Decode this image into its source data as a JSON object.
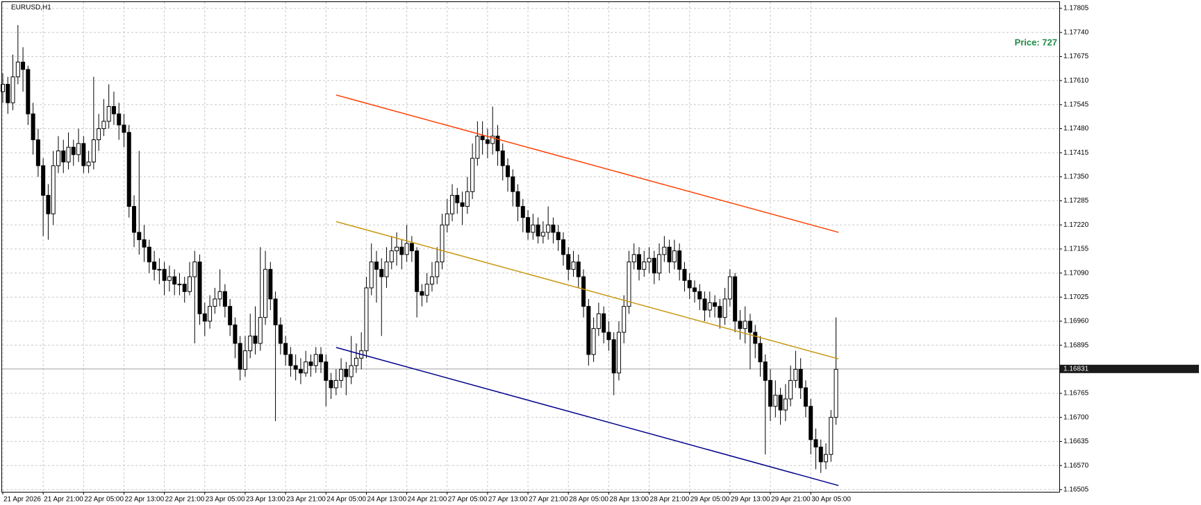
{
  "chart_data": {
    "type": "candlestick",
    "title": "EURUSD,H1",
    "annotation": "Price: 727",
    "bull_color": "#ffffff",
    "bear_color": "#000000",
    "grid": true,
    "ylim": [
      1.16499,
      1.17822
    ],
    "yticks": [
      1.17805,
      {
        "value": 1.1774,
        "label": "1.17740"
      },
      1.17675,
      {
        "value": 1.1761,
        "label": "1.17610"
      },
      1.17545,
      {
        "value": 1.1748,
        "label": "1.17480"
      },
      1.17415,
      {
        "value": 1.1735,
        "label": "1.17350"
      },
      1.17285,
      {
        "value": 1.1722,
        "label": "1.17220"
      },
      1.17155,
      {
        "value": 1.1709,
        "label": "1.17090"
      },
      1.17025,
      {
        "value": 1.1696,
        "label": "1.16960"
      },
      1.16895,
      1.16765,
      {
        "value": 1.167,
        "label": "1.16700"
      },
      1.16635,
      {
        "value": 1.1657,
        "label": "1.16570"
      },
      1.16505
    ],
    "xticks": [
      {
        "value": 0,
        "label": "21 Apr 2026"
      },
      {
        "value": 8,
        "label": "21 Apr 21:00"
      },
      {
        "value": 16,
        "label": "22 Apr 05:00"
      },
      {
        "value": 24,
        "label": "22 Apr 13:00"
      },
      {
        "value": 32,
        "label": "22 Apr 21:00"
      },
      {
        "value": 40,
        "label": "23 Apr 05:00"
      },
      {
        "value": 48,
        "label": "23 Apr 13:00"
      },
      {
        "value": 56,
        "label": "23 Apr 21:00"
      },
      {
        "value": 64,
        "label": "24 Apr 05:00"
      },
      {
        "value": 72,
        "label": "24 Apr 13:00"
      },
      {
        "value": 80,
        "label": "24 Apr 21:00"
      },
      {
        "value": 88,
        "label": "27 Apr 05:00"
      },
      {
        "value": 96,
        "label": "27 Apr 13:00"
      },
      {
        "value": 104,
        "label": "27 Apr 21:00"
      },
      {
        "value": 112,
        "label": "28 Apr 05:00"
      },
      {
        "value": 120,
        "label": "28 Apr 13:00"
      },
      {
        "value": 128,
        "label": "28 Apr 21:00"
      },
      {
        "value": 136,
        "label": "29 Apr 05:00"
      },
      {
        "value": 144,
        "label": "29 Apr 13:00"
      },
      {
        "value": 152,
        "label": "29 Apr 21:00"
      },
      {
        "value": 160,
        "label": "30 Apr 05:00"
      }
    ],
    "last_price": 1.16831,
    "lines": [
      {
        "color": "#ff4000",
        "x": [
          66,
          165.5
        ],
        "y": [
          1.17571,
          1.172
        ]
      },
      {
        "color": "#c8960c",
        "x": [
          66,
          165.5
        ],
        "y": [
          1.17229,
          1.16858
        ]
      },
      {
        "color": "#00008b",
        "x": [
          66,
          165.5
        ],
        "y": [
          1.16889,
          1.16516
        ]
      }
    ],
    "ohlc": [
      [
        1.1758,
        1.1763,
        1.1755,
        1.176
      ],
      [
        1.176,
        1.1762,
        1.1752,
        1.1755
      ],
      [
        1.1755,
        1.1768,
        1.1753,
        1.1762
      ],
      [
        1.1762,
        1.1776,
        1.176,
        1.1766
      ],
      [
        1.1766,
        1.177,
        1.1758,
        1.1764
      ],
      [
        1.1764,
        1.1765,
        1.1749,
        1.1752
      ],
      [
        1.1752,
        1.1755,
        1.1741,
        1.1745
      ],
      [
        1.1745,
        1.1748,
        1.1735,
        1.1738
      ],
      [
        1.1738,
        1.174,
        1.1719,
        1.173
      ],
      [
        1.173,
        1.1733,
        1.1718,
        1.1725
      ],
      [
        1.1725,
        1.1742,
        1.1722,
        1.1738
      ],
      [
        1.1738,
        1.1746,
        1.1736,
        1.1742
      ],
      [
        1.1742,
        1.1745,
        1.1736,
        1.1739
      ],
      [
        1.1739,
        1.1747,
        1.1737,
        1.1743
      ],
      [
        1.1743,
        1.1745,
        1.1738,
        1.1741
      ],
      [
        1.1741,
        1.1748,
        1.1739,
        1.1744
      ],
      [
        1.1744,
        1.1746,
        1.1736,
        1.1738
      ],
      [
        1.1738,
        1.1742,
        1.1736,
        1.1739
      ],
      [
        1.1739,
        1.1762,
        1.1737,
        1.1745
      ],
      [
        1.1745,
        1.1752,
        1.1742,
        1.1748
      ],
      [
        1.1748,
        1.1756,
        1.1746,
        1.175
      ],
      [
        1.175,
        1.176,
        1.1748,
        1.1754
      ],
      [
        1.1754,
        1.1758,
        1.1749,
        1.1752
      ],
      [
        1.1752,
        1.1755,
        1.1745,
        1.1749
      ],
      [
        1.1749,
        1.1752,
        1.1743,
        1.1747
      ],
      [
        1.1747,
        1.1749,
        1.1724,
        1.1727
      ],
      [
        1.1727,
        1.173,
        1.1716,
        1.172
      ],
      [
        1.172,
        1.1742,
        1.1714,
        1.1718
      ],
      [
        1.1718,
        1.1722,
        1.1712,
        1.1716
      ],
      [
        1.1716,
        1.1718,
        1.1709,
        1.1712
      ],
      [
        1.1712,
        1.1715,
        1.1707,
        1.171
      ],
      [
        1.171,
        1.1713,
        1.1706,
        1.171
      ],
      [
        1.171,
        1.1712,
        1.1703,
        1.1707
      ],
      [
        1.1707,
        1.1711,
        1.1704,
        1.1708
      ],
      [
        1.1708,
        1.171,
        1.1703,
        1.1706
      ],
      [
        1.1706,
        1.1709,
        1.1703,
        1.1706
      ],
      [
        1.1706,
        1.1708,
        1.1701,
        1.1704
      ],
      [
        1.1704,
        1.1712,
        1.1703,
        1.1708
      ],
      [
        1.1708,
        1.1715,
        1.169,
        1.1712
      ],
      [
        1.1712,
        1.1714,
        1.1695,
        1.1698
      ],
      [
        1.1698,
        1.1701,
        1.1692,
        1.1696
      ],
      [
        1.1696,
        1.1703,
        1.1694,
        1.17
      ],
      [
        1.17,
        1.1705,
        1.1698,
        1.1702
      ],
      [
        1.1702,
        1.171,
        1.17,
        1.1704
      ],
      [
        1.1704,
        1.1706,
        1.1697,
        1.17
      ],
      [
        1.17,
        1.1702,
        1.1692,
        1.1695
      ],
      [
        1.1695,
        1.1697,
        1.1686,
        1.169
      ],
      [
        1.169,
        1.1692,
        1.168,
        1.1683
      ],
      [
        1.1683,
        1.1692,
        1.1681,
        1.1688
      ],
      [
        1.1688,
        1.1698,
        1.1686,
        1.1692
      ],
      [
        1.1692,
        1.17,
        1.1687,
        1.169
      ],
      [
        1.169,
        1.1716,
        1.1688,
        1.1697
      ],
      [
        1.1697,
        1.1715,
        1.1695,
        1.171
      ],
      [
        1.171,
        1.1712,
        1.1699,
        1.1702
      ],
      [
        1.1702,
        1.1704,
        1.1669,
        1.1695
      ],
      [
        1.1695,
        1.1697,
        1.1687,
        1.169
      ],
      [
        1.169,
        1.1692,
        1.1684,
        1.1687
      ],
      [
        1.1687,
        1.1689,
        1.1681,
        1.1684
      ],
      [
        1.1684,
        1.1687,
        1.168,
        1.1683
      ],
      [
        1.1683,
        1.1686,
        1.1679,
        1.1682
      ],
      [
        1.1682,
        1.1688,
        1.1681,
        1.1685
      ],
      [
        1.1685,
        1.1687,
        1.1681,
        1.1684
      ],
      [
        1.1684,
        1.1689,
        1.1682,
        1.1687
      ],
      [
        1.1687,
        1.1689,
        1.1682,
        1.1685
      ],
      [
        1.1685,
        1.1687,
        1.1673,
        1.168
      ],
      [
        1.168,
        1.1682,
        1.1675,
        1.1678
      ],
      [
        1.1678,
        1.1683,
        1.1676,
        1.168
      ],
      [
        1.168,
        1.1686,
        1.1678,
        1.1683
      ],
      [
        1.1683,
        1.1685,
        1.1676,
        1.1681
      ],
      [
        1.1681,
        1.1692,
        1.1679,
        1.1684
      ],
      [
        1.1684,
        1.169,
        1.1682,
        1.1686
      ],
      [
        1.1686,
        1.1693,
        1.1683,
        1.1688
      ],
      [
        1.1688,
        1.1708,
        1.1686,
        1.1705
      ],
      [
        1.1705,
        1.1717,
        1.1703,
        1.1712
      ],
      [
        1.1712,
        1.1715,
        1.1701,
        1.171
      ],
      [
        1.171,
        1.1713,
        1.1692,
        1.1708
      ],
      [
        1.1708,
        1.1716,
        1.1705,
        1.1712
      ],
      [
        1.1712,
        1.1719,
        1.171,
        1.1715
      ],
      [
        1.1715,
        1.172,
        1.1711,
        1.1716
      ],
      [
        1.1716,
        1.1718,
        1.171,
        1.1714
      ],
      [
        1.1714,
        1.1722,
        1.1712,
        1.1717
      ],
      [
        1.1717,
        1.1719,
        1.1712,
        1.1715
      ],
      [
        1.1715,
        1.1716,
        1.1697,
        1.1704
      ],
      [
        1.1704,
        1.1706,
        1.17,
        1.1703
      ],
      [
        1.1703,
        1.1709,
        1.1701,
        1.1706
      ],
      [
        1.1706,
        1.1712,
        1.1704,
        1.1708
      ],
      [
        1.1708,
        1.1716,
        1.1706,
        1.1712
      ],
      [
        1.1712,
        1.1725,
        1.171,
        1.1722
      ],
      [
        1.1722,
        1.1729,
        1.172,
        1.1725
      ],
      [
        1.1725,
        1.1733,
        1.1723,
        1.173
      ],
      [
        1.173,
        1.1732,
        1.1725,
        1.1728
      ],
      [
        1.1728,
        1.1731,
        1.1722,
        1.1727
      ],
      [
        1.1727,
        1.1735,
        1.1725,
        1.1731
      ],
      [
        1.1731,
        1.1744,
        1.1729,
        1.174
      ],
      [
        1.174,
        1.175,
        1.1738,
        1.1746
      ],
      [
        1.1746,
        1.175,
        1.1741,
        1.1745
      ],
      [
        1.1745,
        1.1748,
        1.174,
        1.1744
      ],
      [
        1.1744,
        1.1754,
        1.1741,
        1.1746
      ],
      [
        1.1746,
        1.1749,
        1.1738,
        1.1742
      ],
      [
        1.1742,
        1.1744,
        1.1734,
        1.1738
      ],
      [
        1.1738,
        1.174,
        1.1731,
        1.1735
      ],
      [
        1.1735,
        1.1737,
        1.1727,
        1.1731
      ],
      [
        1.1731,
        1.1733,
        1.1723,
        1.1727
      ],
      [
        1.1727,
        1.1729,
        1.172,
        1.1724
      ],
      [
        1.1724,
        1.1726,
        1.1718,
        1.172
      ],
      [
        1.172,
        1.1725,
        1.1718,
        1.1722
      ],
      [
        1.1722,
        1.1724,
        1.1717,
        1.1719
      ],
      [
        1.1719,
        1.1723,
        1.1717,
        1.172
      ],
      [
        1.172,
        1.1727,
        1.1718,
        1.1722
      ],
      [
        1.1722,
        1.1724,
        1.1717,
        1.172
      ],
      [
        1.172,
        1.1722,
        1.1715,
        1.1718
      ],
      [
        1.1718,
        1.172,
        1.1711,
        1.1714
      ],
      [
        1.1714,
        1.1716,
        1.1707,
        1.171
      ],
      [
        1.171,
        1.1715,
        1.1708,
        1.1712
      ],
      [
        1.1712,
        1.1714,
        1.1705,
        1.1708
      ],
      [
        1.1708,
        1.171,
        1.1697,
        1.17
      ],
      [
        1.17,
        1.1702,
        1.1684,
        1.1687
      ],
      [
        1.1687,
        1.1697,
        1.1685,
        1.1694
      ],
      [
        1.1694,
        1.1701,
        1.1692,
        1.1698
      ],
      [
        1.1698,
        1.17,
        1.169,
        1.1693
      ],
      [
        1.1693,
        1.1696,
        1.1688,
        1.1691
      ],
      [
        1.1691,
        1.1693,
        1.1676,
        1.1682
      ],
      [
        1.1682,
        1.1696,
        1.168,
        1.1693
      ],
      [
        1.1693,
        1.1703,
        1.169,
        1.17
      ],
      [
        1.17,
        1.1715,
        1.1698,
        1.1712
      ],
      [
        1.1712,
        1.1717,
        1.171,
        1.1714
      ],
      [
        1.1714,
        1.1716,
        1.1707,
        1.171
      ],
      [
        1.171,
        1.1715,
        1.1708,
        1.1712
      ],
      [
        1.1712,
        1.1716,
        1.1709,
        1.1713
      ],
      [
        1.1713,
        1.1715,
        1.1706,
        1.1709
      ],
      [
        1.1709,
        1.1717,
        1.1707,
        1.1714
      ],
      [
        1.1714,
        1.1719,
        1.1712,
        1.1716
      ],
      [
        1.1716,
        1.1718,
        1.1709,
        1.1712
      ],
      [
        1.1712,
        1.1718,
        1.171,
        1.1715
      ],
      [
        1.1715,
        1.1717,
        1.1707,
        1.171
      ],
      [
        1.171,
        1.1712,
        1.1704,
        1.1707
      ],
      [
        1.1707,
        1.1709,
        1.1702,
        1.1705
      ],
      [
        1.1705,
        1.1707,
        1.1701,
        1.1704
      ],
      [
        1.1704,
        1.1706,
        1.1699,
        1.1702
      ],
      [
        1.1702,
        1.1704,
        1.1696,
        1.1699
      ],
      [
        1.1699,
        1.1704,
        1.1697,
        1.1701
      ],
      [
        1.1701,
        1.1703,
        1.1697,
        1.17
      ],
      [
        1.17,
        1.1702,
        1.1694,
        1.1697
      ],
      [
        1.1697,
        1.1705,
        1.1695,
        1.1702
      ],
      [
        1.1702,
        1.171,
        1.17,
        1.1708
      ],
      [
        1.1708,
        1.1709,
        1.1693,
        1.1696
      ],
      [
        1.1696,
        1.1699,
        1.1691,
        1.1694
      ],
      [
        1.1694,
        1.17,
        1.169,
        1.1696
      ],
      [
        1.1696,
        1.1698,
        1.1683,
        1.1693
      ],
      [
        1.1693,
        1.1695,
        1.1686,
        1.169
      ],
      [
        1.169,
        1.1692,
        1.1681,
        1.1685
      ],
      [
        1.1685,
        1.1687,
        1.166,
        1.168
      ],
      [
        1.168,
        1.1683,
        1.1669,
        1.1673
      ],
      [
        1.1673,
        1.168,
        1.167,
        1.1676
      ],
      [
        1.1676,
        1.1678,
        1.1668,
        1.1672
      ],
      [
        1.1672,
        1.1679,
        1.1669,
        1.1675
      ],
      [
        1.1675,
        1.1684,
        1.1673,
        1.168
      ],
      [
        1.168,
        1.1688,
        1.1678,
        1.1683
      ],
      [
        1.1683,
        1.1686,
        1.1675,
        1.1678
      ],
      [
        1.1678,
        1.168,
        1.167,
        1.1673
      ],
      [
        1.1673,
        1.1675,
        1.166,
        1.1664
      ],
      [
        1.1664,
        1.1667,
        1.1656,
        1.1662
      ],
      [
        1.1662,
        1.1664,
        1.1655,
        1.1658
      ],
      [
        1.1658,
        1.1663,
        1.1656,
        1.166
      ],
      [
        1.166,
        1.1672,
        1.1658,
        1.167
      ],
      [
        1.167,
        1.1697,
        1.1668,
        1.1683
      ]
    ]
  }
}
